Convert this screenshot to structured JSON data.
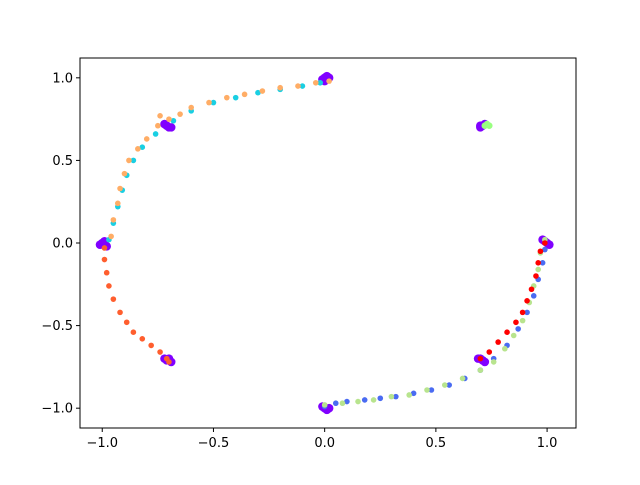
{
  "chart_data": {
    "type": "scatter",
    "title": "",
    "xlabel": "",
    "ylabel": "",
    "xlim": [
      -1.1,
      1.13
    ],
    "ylim": [
      -1.12,
      1.12
    ],
    "grid": false,
    "legend": "none",
    "x_ticks": [
      -1.0,
      -0.5,
      0.0,
      0.5,
      1.0
    ],
    "x_tick_labels": [
      "−1.0",
      "−0.5",
      "0.0",
      "0.5",
      "1.0"
    ],
    "y_ticks": [
      -1.0,
      -0.5,
      0.0,
      0.5,
      1.0
    ],
    "y_tick_labels": [
      "−1.0",
      "−0.5",
      "0.0",
      "0.5",
      "1.0"
    ],
    "series": [
      {
        "color": "#8000ff",
        "marker_size": 7,
        "points": [
          [
            0.0,
            1.0
          ],
          [
            0.01,
            1.01
          ],
          [
            -0.01,
            0.99
          ],
          [
            0.02,
            1.0
          ],
          [
            0.0,
            0.98
          ],
          [
            -0.71,
            0.71
          ],
          [
            -0.7,
            0.7
          ],
          [
            -0.72,
            0.72
          ],
          [
            -0.69,
            0.7
          ],
          [
            -1.0,
            0.0
          ],
          [
            -0.99,
            0.01
          ],
          [
            -1.01,
            -0.01
          ],
          [
            -0.98,
            -0.02
          ],
          [
            -0.71,
            -0.71
          ],
          [
            -0.7,
            -0.7
          ],
          [
            -0.72,
            -0.7
          ],
          [
            -0.69,
            -0.72
          ],
          [
            0.0,
            -1.0
          ],
          [
            0.01,
            -1.01
          ],
          [
            -0.01,
            -0.99
          ],
          [
            0.02,
            -1.0
          ],
          [
            0.71,
            -0.71
          ],
          [
            0.7,
            -0.7
          ],
          [
            0.72,
            -0.72
          ],
          [
            0.69,
            -0.7
          ],
          [
            1.0,
            0.0
          ],
          [
            0.99,
            0.01
          ],
          [
            1.01,
            -0.01
          ],
          [
            0.98,
            0.02
          ],
          [
            0.71,
            0.71
          ],
          [
            0.7,
            0.7
          ],
          [
            0.72,
            0.72
          ],
          [
            0.7,
            0.71
          ]
        ]
      },
      {
        "color": "#4a6bf2",
        "marker_size": 4,
        "points": [
          [
            0.0,
            -0.99
          ],
          [
            0.05,
            -0.97
          ],
          [
            0.1,
            -0.96
          ],
          [
            0.18,
            -0.95
          ],
          [
            0.25,
            -0.94
          ],
          [
            0.32,
            -0.93
          ],
          [
            0.4,
            -0.91
          ],
          [
            0.48,
            -0.89
          ],
          [
            0.56,
            -0.86
          ],
          [
            0.63,
            -0.82
          ],
          [
            0.7,
            -0.77
          ],
          [
            0.76,
            -0.7
          ],
          [
            0.82,
            -0.62
          ],
          [
            0.87,
            -0.52
          ],
          [
            0.91,
            -0.42
          ],
          [
            0.94,
            -0.32
          ],
          [
            0.96,
            -0.22
          ],
          [
            0.98,
            -0.12
          ],
          [
            0.99,
            -0.04
          ]
        ]
      },
      {
        "color": "#19cfe3",
        "marker_size": 4,
        "points": [
          [
            -0.97,
            0.02
          ],
          [
            -0.95,
            0.12
          ],
          [
            -0.93,
            0.22
          ],
          [
            -0.91,
            0.32
          ],
          [
            -0.89,
            0.41
          ],
          [
            -0.86,
            0.5
          ],
          [
            -0.82,
            0.58
          ],
          [
            -0.76,
            0.66
          ],
          [
            -0.68,
            0.74
          ],
          [
            -0.6,
            0.8
          ],
          [
            -0.5,
            0.85
          ],
          [
            -0.4,
            0.88
          ],
          [
            -0.3,
            0.91
          ],
          [
            -0.2,
            0.93
          ],
          [
            -0.1,
            0.95
          ],
          [
            -0.02,
            0.97
          ]
        ]
      },
      {
        "color": "#99ff80",
        "marker_size": 5,
        "points": [
          [
            0.72,
            0.71
          ],
          [
            0.73,
            0.72
          ],
          [
            0.74,
            0.71
          ]
        ]
      },
      {
        "color": "#b8e48e",
        "marker_size": 4,
        "points": [
          [
            0.0,
            -0.98
          ],
          [
            0.08,
            -0.97
          ],
          [
            0.15,
            -0.96
          ],
          [
            0.22,
            -0.95
          ],
          [
            0.3,
            -0.93
          ],
          [
            0.38,
            -0.92
          ],
          [
            0.46,
            -0.89
          ],
          [
            0.54,
            -0.86
          ],
          [
            0.62,
            -0.82
          ],
          [
            0.7,
            -0.77
          ],
          [
            0.76,
            -0.72
          ],
          [
            0.81,
            -0.64
          ],
          [
            0.85,
            -0.56
          ],
          [
            0.89,
            -0.47
          ],
          [
            0.92,
            -0.36
          ],
          [
            0.94,
            -0.26
          ],
          [
            0.96,
            -0.16
          ],
          [
            0.97,
            -0.06
          ],
          [
            0.99,
            0.02
          ]
        ]
      },
      {
        "color": "#ffad66",
        "marker_size": 4,
        "points": [
          [
            -0.96,
            0.04
          ],
          [
            -0.95,
            0.14
          ],
          [
            -0.93,
            0.24
          ],
          [
            -0.92,
            0.33
          ],
          [
            -0.9,
            0.42
          ],
          [
            -0.88,
            0.5
          ],
          [
            -0.84,
            0.57
          ],
          [
            -0.8,
            0.63
          ],
          [
            -0.75,
            0.71
          ],
          [
            -0.74,
            0.77
          ],
          [
            -0.7,
            0.75
          ],
          [
            -0.65,
            0.78
          ],
          [
            -0.6,
            0.82
          ],
          [
            -0.52,
            0.85
          ],
          [
            -0.44,
            0.88
          ],
          [
            -0.36,
            0.9
          ],
          [
            -0.28,
            0.92
          ],
          [
            -0.2,
            0.94
          ],
          [
            -0.12,
            0.95
          ],
          [
            -0.04,
            0.97
          ],
          [
            0.02,
            0.98
          ]
        ]
      },
      {
        "color": "#ff5e2e",
        "marker_size": 4,
        "points": [
          [
            -0.99,
            -0.03
          ],
          [
            -0.99,
            -0.1
          ],
          [
            -0.98,
            -0.18
          ],
          [
            -0.97,
            -0.26
          ],
          [
            -0.95,
            -0.34
          ],
          [
            -0.92,
            -0.42
          ],
          [
            -0.89,
            -0.48
          ],
          [
            -0.86,
            -0.54
          ],
          [
            -0.82,
            -0.58
          ],
          [
            -0.78,
            -0.62
          ],
          [
            -0.74,
            -0.66
          ],
          [
            -0.71,
            -0.7
          ],
          [
            -0.7,
            -0.72
          ]
        ]
      },
      {
        "color": "#ff0000",
        "marker_size": 4,
        "points": [
          [
            0.7,
            -0.7
          ],
          [
            0.74,
            -0.66
          ],
          [
            0.78,
            -0.6
          ],
          [
            0.82,
            -0.54
          ],
          [
            0.86,
            -0.48
          ],
          [
            0.89,
            -0.42
          ],
          [
            0.91,
            -0.35
          ],
          [
            0.93,
            -0.28
          ],
          [
            0.95,
            -0.2
          ],
          [
            0.96,
            -0.12
          ],
          [
            0.97,
            -0.05
          ],
          [
            0.99,
            0.0
          ]
        ]
      }
    ]
  }
}
